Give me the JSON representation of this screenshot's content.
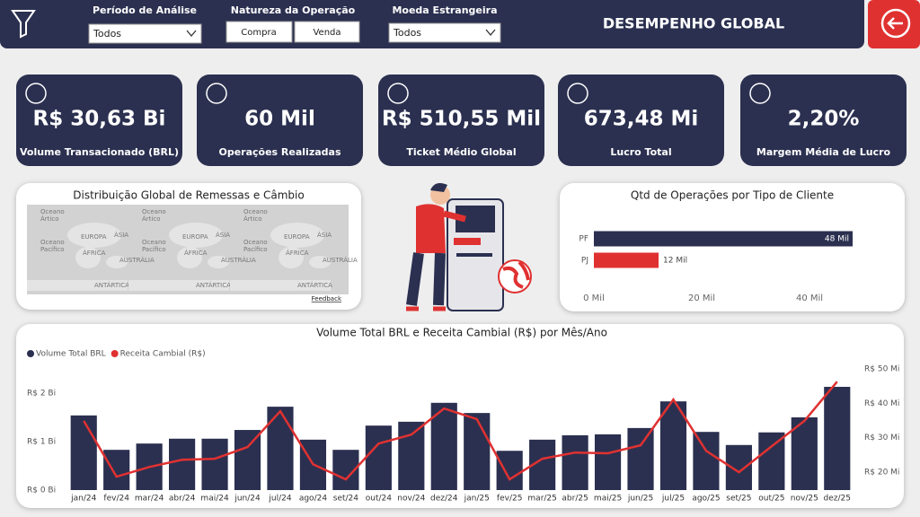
{
  "header": {
    "title": "DESEMPENHO GLOBAL"
  },
  "filters": {
    "period": {
      "label": "Período de Análise",
      "value": "Todos"
    },
    "operation": {
      "label": "Natureza da Operação",
      "options": [
        "Compra",
        "Venda"
      ]
    },
    "currency": {
      "label": "Moeda Estrangeira",
      "value": "Todos"
    }
  },
  "kpis": [
    {
      "value": "R$ 30,63 Bi",
      "label": "Volume Transacionado (BRL)"
    },
    {
      "value": "60 Mil",
      "label": "Operações Realizadas"
    },
    {
      "value": "R$ 510,55 Mil",
      "label": "Ticket Médio Global"
    },
    {
      "value": "673,48 Mi",
      "label": "Lucro Total"
    },
    {
      "value": "2,20%",
      "label": "Margem Média de Lucro"
    }
  ],
  "map": {
    "title": "Distribuição Global de Remessas e Câmbio",
    "labels": [
      "Oceano",
      "Ártico",
      "EUROPA",
      "ÁSIA",
      "ÁFRICA",
      "Oceano",
      "Pacífico",
      "AUSTRÁLIA",
      "ANTÁRTICA"
    ],
    "feedback": "Feedback"
  },
  "chart_data": [
    {
      "type": "hbar",
      "title": "Qtd de Operações por Tipo de Cliente",
      "categories": [
        "PF",
        "PJ"
      ],
      "values": [
        48,
        12
      ],
      "value_labels": [
        "48 Mil",
        "12 Mil"
      ],
      "colors": [
        "#2b3050",
        "#e03131"
      ],
      "xlim": [
        0,
        48
      ],
      "xticks": [
        {
          "value": 0,
          "label": "0 Mil"
        },
        {
          "value": 20,
          "label": "20 Mil"
        },
        {
          "value": 40,
          "label": "40 Mil"
        }
      ]
    },
    {
      "type": "combo",
      "title": "Volume Total BRL e Receita Cambial (R$) por Mês/Ano",
      "categories": [
        "jan/24",
        "fev/24",
        "mar/24",
        "abr/24",
        "mai/24",
        "jun/24",
        "jul/24",
        "ago/24",
        "set/24",
        "out/24",
        "nov/24",
        "dez/24",
        "jan/25",
        "fev/25",
        "mar/25",
        "abr/25",
        "mai/25",
        "jun/25",
        "jul/25",
        "ago/25",
        "set/25",
        "out/25",
        "nov/25",
        "dez/25"
      ],
      "legend": "top-left",
      "series": [
        {
          "name": "Volume Total BRL",
          "type": "bar",
          "color": "#2b3050",
          "values": [
            1.54,
            0.83,
            0.96,
            1.06,
            1.06,
            1.24,
            1.72,
            1.04,
            0.83,
            1.33,
            1.41,
            1.8,
            1.59,
            0.81,
            1.04,
            1.13,
            1.15,
            1.28,
            1.83,
            1.2,
            0.93,
            1.19,
            1.5,
            2.13
          ]
        },
        {
          "name": "Receita Cambial (R$)",
          "type": "line",
          "axis": "y2",
          "color": "#e03131",
          "values": [
            34.9,
            18.7,
            21.5,
            23.6,
            23.9,
            27.3,
            37.7,
            22.3,
            17.9,
            28.3,
            30.9,
            38.5,
            35.4,
            17.9,
            23.9,
            25.7,
            25.5,
            27.8,
            41.1,
            26.2,
            20.0,
            27.5,
            34.9,
            46.3
          ]
        }
      ],
      "ylim": [
        0,
        2.5
      ],
      "yticks": [
        {
          "value": 0,
          "label": "R$ 0 Bi"
        },
        {
          "value": 1,
          "label": "R$ 1 Bi"
        },
        {
          "value": 2,
          "label": "R$ 2 Bi"
        }
      ],
      "y2lim": [
        14.8,
        50
      ],
      "y2ticks": [
        {
          "value": 20,
          "label": "R$ 20 Mi"
        },
        {
          "value": 30,
          "label": "R$ 30 Mi"
        },
        {
          "value": 40,
          "label": "R$ 40 Mi"
        },
        {
          "value": 50,
          "label": "R$ 50 Mi"
        }
      ]
    }
  ]
}
